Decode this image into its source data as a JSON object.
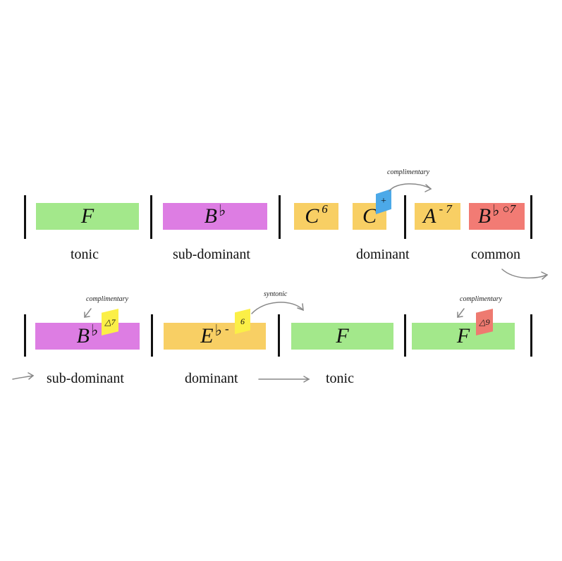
{
  "colors": {
    "tonic": "#a3e88b",
    "subdominant": "#dd7de3",
    "dominant": "#f8cf64",
    "common": "#f27b74",
    "tag_blue": "#4ca9e8",
    "tag_yellow": "#fbef47",
    "tag_red": "#ee7a70"
  },
  "row1": {
    "chords": [
      {
        "root": "F",
        "acc": "",
        "ext": ""
      },
      {
        "root": "B",
        "acc": "♭",
        "ext": ""
      },
      {
        "root": "C",
        "acc": "",
        "ext": "6"
      },
      {
        "root": "C",
        "acc": "",
        "ext": ""
      },
      {
        "root": "A",
        "acc": "",
        "ext": "- 7"
      },
      {
        "root": "B",
        "acc": "♭",
        "ext": "○7"
      }
    ],
    "tags": [
      {
        "text": "+"
      }
    ],
    "functions": [
      "tonic",
      "sub-dominant",
      "dominant",
      "common"
    ],
    "note": "complimentary"
  },
  "row2": {
    "chords": [
      {
        "root": "B",
        "acc": "♭",
        "ext": ""
      },
      {
        "root": "E",
        "acc": "♭",
        "ext": "-"
      },
      {
        "root": "F",
        "acc": "",
        "ext": ""
      },
      {
        "root": "F",
        "acc": "",
        "ext": ""
      }
    ],
    "tags": [
      {
        "text": "△7"
      },
      {
        "text": "6"
      },
      {
        "text": "△9"
      }
    ],
    "functions": [
      "sub-dominant",
      "dominant",
      "tonic"
    ],
    "notes": [
      "complimentary",
      "syntonic",
      "complimentary"
    ]
  }
}
